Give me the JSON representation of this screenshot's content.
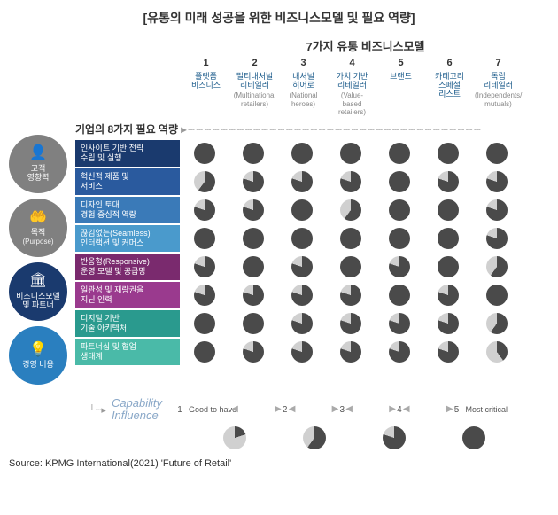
{
  "title": "[유통의 미래 성공을 위한 비즈니스모델 및 필요 역량]",
  "models_title": "7가지 유통 비즈니스모델",
  "caps_title": "기업의 8가지 필요 역량",
  "source": "Source: KPMG International(2021) 'Future of Retail'",
  "colors": {
    "pie_fill": "#4a4a4a",
    "pie_empty": "#d0d0d0",
    "node_grey": "#808080",
    "node_blue_dark": "#1a3a6e",
    "node_blue_light": "#2a7fbf",
    "header_text": "#1a5a8a"
  },
  "sidebar": [
    {
      "icon": "👤",
      "label": "고객\n영향력",
      "sub": "",
      "cls": "grey"
    },
    {
      "icon": "🤲",
      "label": "목적",
      "sub": "(Purpose)",
      "cls": "grey"
    },
    {
      "icon": "🏛",
      "label": "비즈니스모델\n및 파트너",
      "sub": "",
      "cls": "blue1"
    },
    {
      "icon": "💡",
      "label": "경영 비용",
      "sub": "",
      "cls": "blue2"
    }
  ],
  "columns": [
    {
      "num": "1",
      "ko": "플랫폼\n비즈니스",
      "en": ""
    },
    {
      "num": "2",
      "ko": "멀티내셔널\n리테일러",
      "en": "(Multinational\nretailers)"
    },
    {
      "num": "3",
      "ko": "내셔널\n히어로",
      "en": "(National\nheroes)"
    },
    {
      "num": "4",
      "ko": "가치 기반\n리테일러",
      "en": "(Value-\nbased\nretailers)"
    },
    {
      "num": "5",
      "ko": "브랜드",
      "en": ""
    },
    {
      "num": "6",
      "ko": "카테고리\n스페셜\n리스트",
      "en": ""
    },
    {
      "num": "7",
      "ko": "독립\n리테일러",
      "en": "(Independents/\nmutuals)"
    }
  ],
  "row_colors": [
    "#1a3a6e",
    "#2a5a9e",
    "#3a7ab8",
    "#4a9acc",
    "#7a2a6e",
    "#9a3a8e",
    "#2a9a8e",
    "#4abaa8"
  ],
  "rows": [
    {
      "label": "인사이트 기반 전략\n수립 및 실행",
      "values": [
        5,
        5,
        5,
        5,
        5,
        5,
        5
      ]
    },
    {
      "label": "혁신적 제품 및\n서비스",
      "values": [
        3,
        4,
        4,
        4,
        5,
        4,
        4
      ]
    },
    {
      "label": "디자인 토대\n경험 중심적 역량",
      "values": [
        4,
        4,
        5,
        3,
        5,
        5,
        4
      ]
    },
    {
      "label": "끊김없는(Seamless)\n인터랙션 및 커머스",
      "values": [
        5,
        5,
        5,
        5,
        5,
        5,
        4
      ]
    },
    {
      "label": "반응형(Responsive)\n운영 모델 및 공급망",
      "values": [
        4,
        5,
        4,
        5,
        4,
        5,
        3
      ]
    },
    {
      "label": "일관성 및 재량권을\n지닌 인력",
      "values": [
        4,
        4,
        4,
        4,
        5,
        4,
        5
      ]
    },
    {
      "label": "디지털 기반\n기술 아키텍처",
      "values": [
        5,
        5,
        4,
        4,
        4,
        4,
        3
      ]
    },
    {
      "label": "파트너십 및 협업\n생태계",
      "values": [
        5,
        4,
        4,
        4,
        4,
        4,
        2
      ]
    }
  ],
  "legend": {
    "label1": "Capability",
    "label2": "Influence",
    "left": "Good to have",
    "right": "Most critical",
    "nums": [
      "1",
      "2",
      "3",
      "4",
      "5"
    ],
    "samples": [
      1,
      3,
      4,
      5
    ]
  }
}
